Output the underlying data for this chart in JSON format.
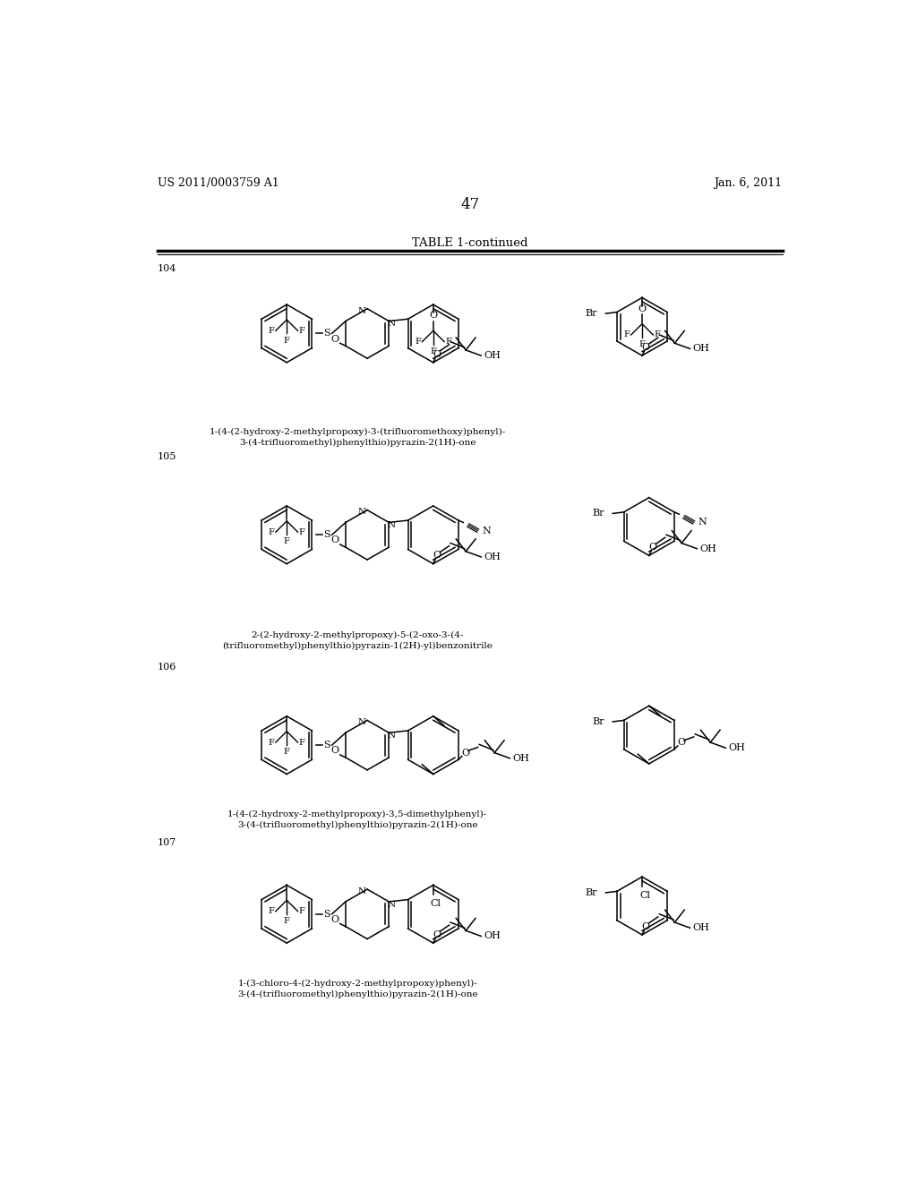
{
  "page_number": "47",
  "header_left": "US 2011/0003759 A1",
  "header_right": "Jan. 6, 2011",
  "table_title": "TABLE 1-continued",
  "background_color": "#ffffff",
  "text_color": "#000000",
  "entries": [
    {
      "number": "104",
      "caption_line1": "1-(4-(2-hydroxy-2-methylpropoxy)-3-(trifluoromethoxy)phenyl)-",
      "caption_line2": "3-(4-trifluoromethyl)phenylthio)pyrazin-2(1H)-one"
    },
    {
      "number": "105",
      "caption_line1": "2-(2-hydroxy-2-methylpropoxy)-5-(2-oxo-3-(4-",
      "caption_line2": "(trifluoromethyl)phenylthio)pyrazin-1(2H)-yl)benzonitrile"
    },
    {
      "number": "106",
      "caption_line1": "1-(4-(2-hydroxy-2-methylpropoxy)-3,5-dimethylphenyl)-",
      "caption_line2": "3-(4-(trifluoromethyl)phenylthio)pyrazin-2(1H)-one"
    },
    {
      "number": "107",
      "caption_line1": "1-(3-chloro-4-(2-hydroxy-2-methylpropoxy)phenyl)-",
      "caption_line2": "3-(4-(trifluoromethyl)phenylthio)pyrazin-2(1H)-one"
    }
  ]
}
